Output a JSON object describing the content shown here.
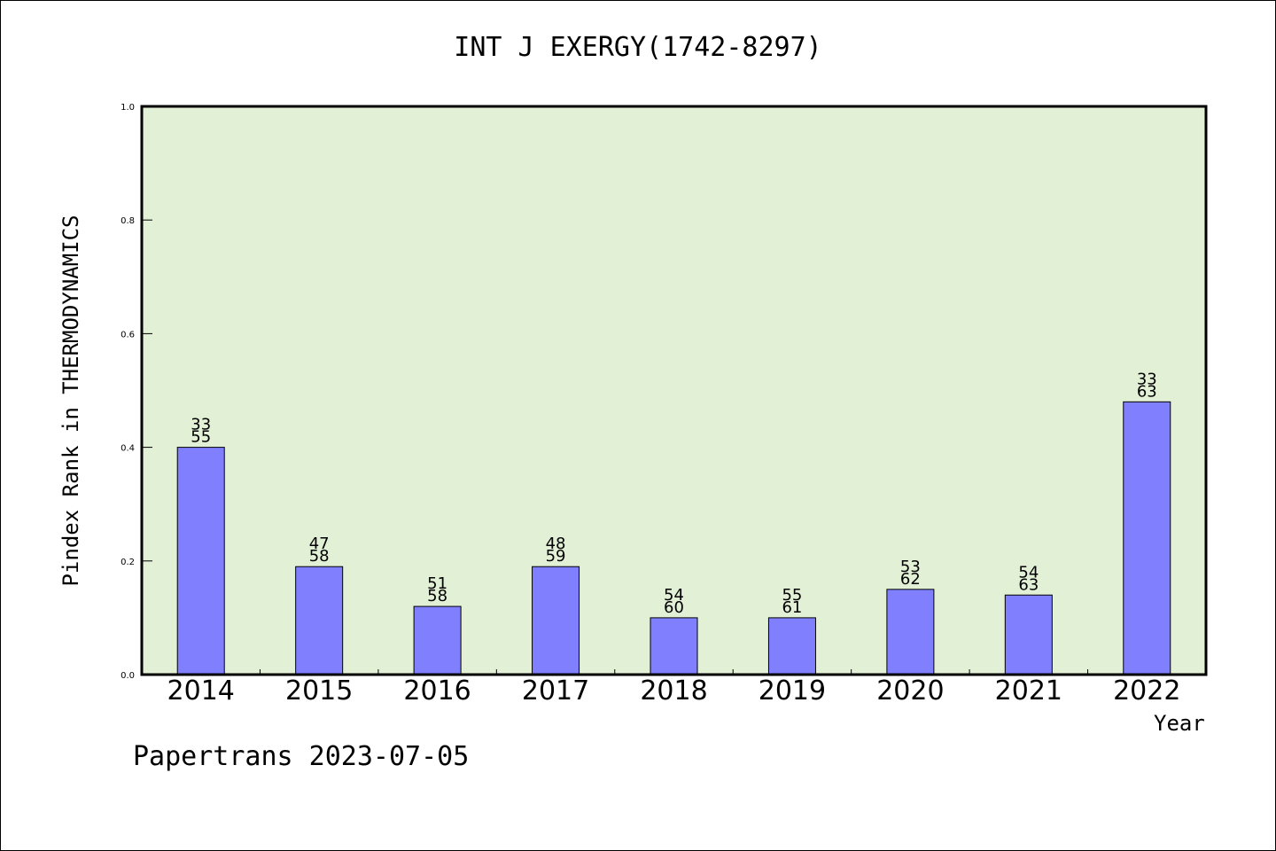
{
  "chart_data": {
    "type": "bar",
    "title": "INT J EXERGY(1742-8297)",
    "xlabel": "Year",
    "ylabel": "Pindex Rank in THERMODYNAMICS",
    "ylim": [
      0,
      1.0
    ],
    "yticks": [
      "0.0",
      "0.2",
      "0.4",
      "0.6",
      "0.8",
      "1.0"
    ],
    "categories": [
      "2014",
      "2015",
      "2016",
      "2017",
      "2018",
      "2019",
      "2020",
      "2021",
      "2022"
    ],
    "values": [
      0.4,
      0.19,
      0.12,
      0.19,
      0.1,
      0.1,
      0.15,
      0.14,
      0.48
    ],
    "rank": [
      "33",
      "47",
      "51",
      "48",
      "54",
      "55",
      "53",
      "54",
      "33"
    ],
    "total": [
      "55",
      "58",
      "58",
      "59",
      "60",
      "61",
      "62",
      "63",
      "63"
    ],
    "bar_color": "#8080ff",
    "plot_background": "#e2f0d6",
    "grid": false,
    "legend": "none"
  },
  "footer": "Papertrans 2023-07-05"
}
